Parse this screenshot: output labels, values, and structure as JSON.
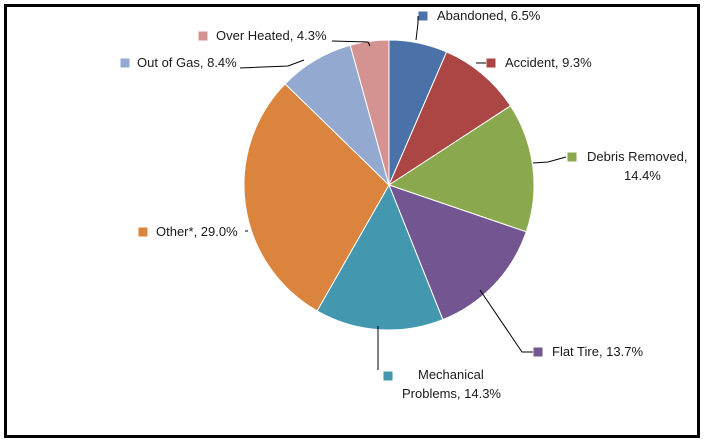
{
  "chart_data": {
    "type": "pie",
    "title": "",
    "start_angle_deg": 0,
    "direction": "clockwise",
    "legend": "none (data labels with leader lines)",
    "slices": [
      {
        "label": "Abandoned",
        "value": 6.5,
        "display": "Abandoned, 6.5%",
        "color": "#4A72A8"
      },
      {
        "label": "Accident",
        "value": 9.3,
        "display": "Accident, 9.3%",
        "color": "#AC4644"
      },
      {
        "label": "Debris Removed",
        "value": 14.4,
        "display": [
          "Debris Removed,",
          "14.4%"
        ],
        "color": "#8AA84E"
      },
      {
        "label": "Flat Tire",
        "value": 13.7,
        "display": "Flat Tire, 13.7%",
        "color": "#735592"
      },
      {
        "label": "Mechanical Problems",
        "value": 14.3,
        "display": [
          "Mechanical",
          "Problems, 14.3%"
        ],
        "color": "#4397AF"
      },
      {
        "label": "Other*",
        "value": 29.0,
        "display": "Other*, 29.0%",
        "color": "#DB843D"
      },
      {
        "label": "Out of Gas",
        "value": 8.4,
        "display": "Out of Gas, 8.4%",
        "color": "#93A9CF"
      },
      {
        "label": "Over Heated",
        "value": 4.3,
        "display": "Over Heated, 4.3%",
        "color": "#D49390"
      }
    ]
  }
}
